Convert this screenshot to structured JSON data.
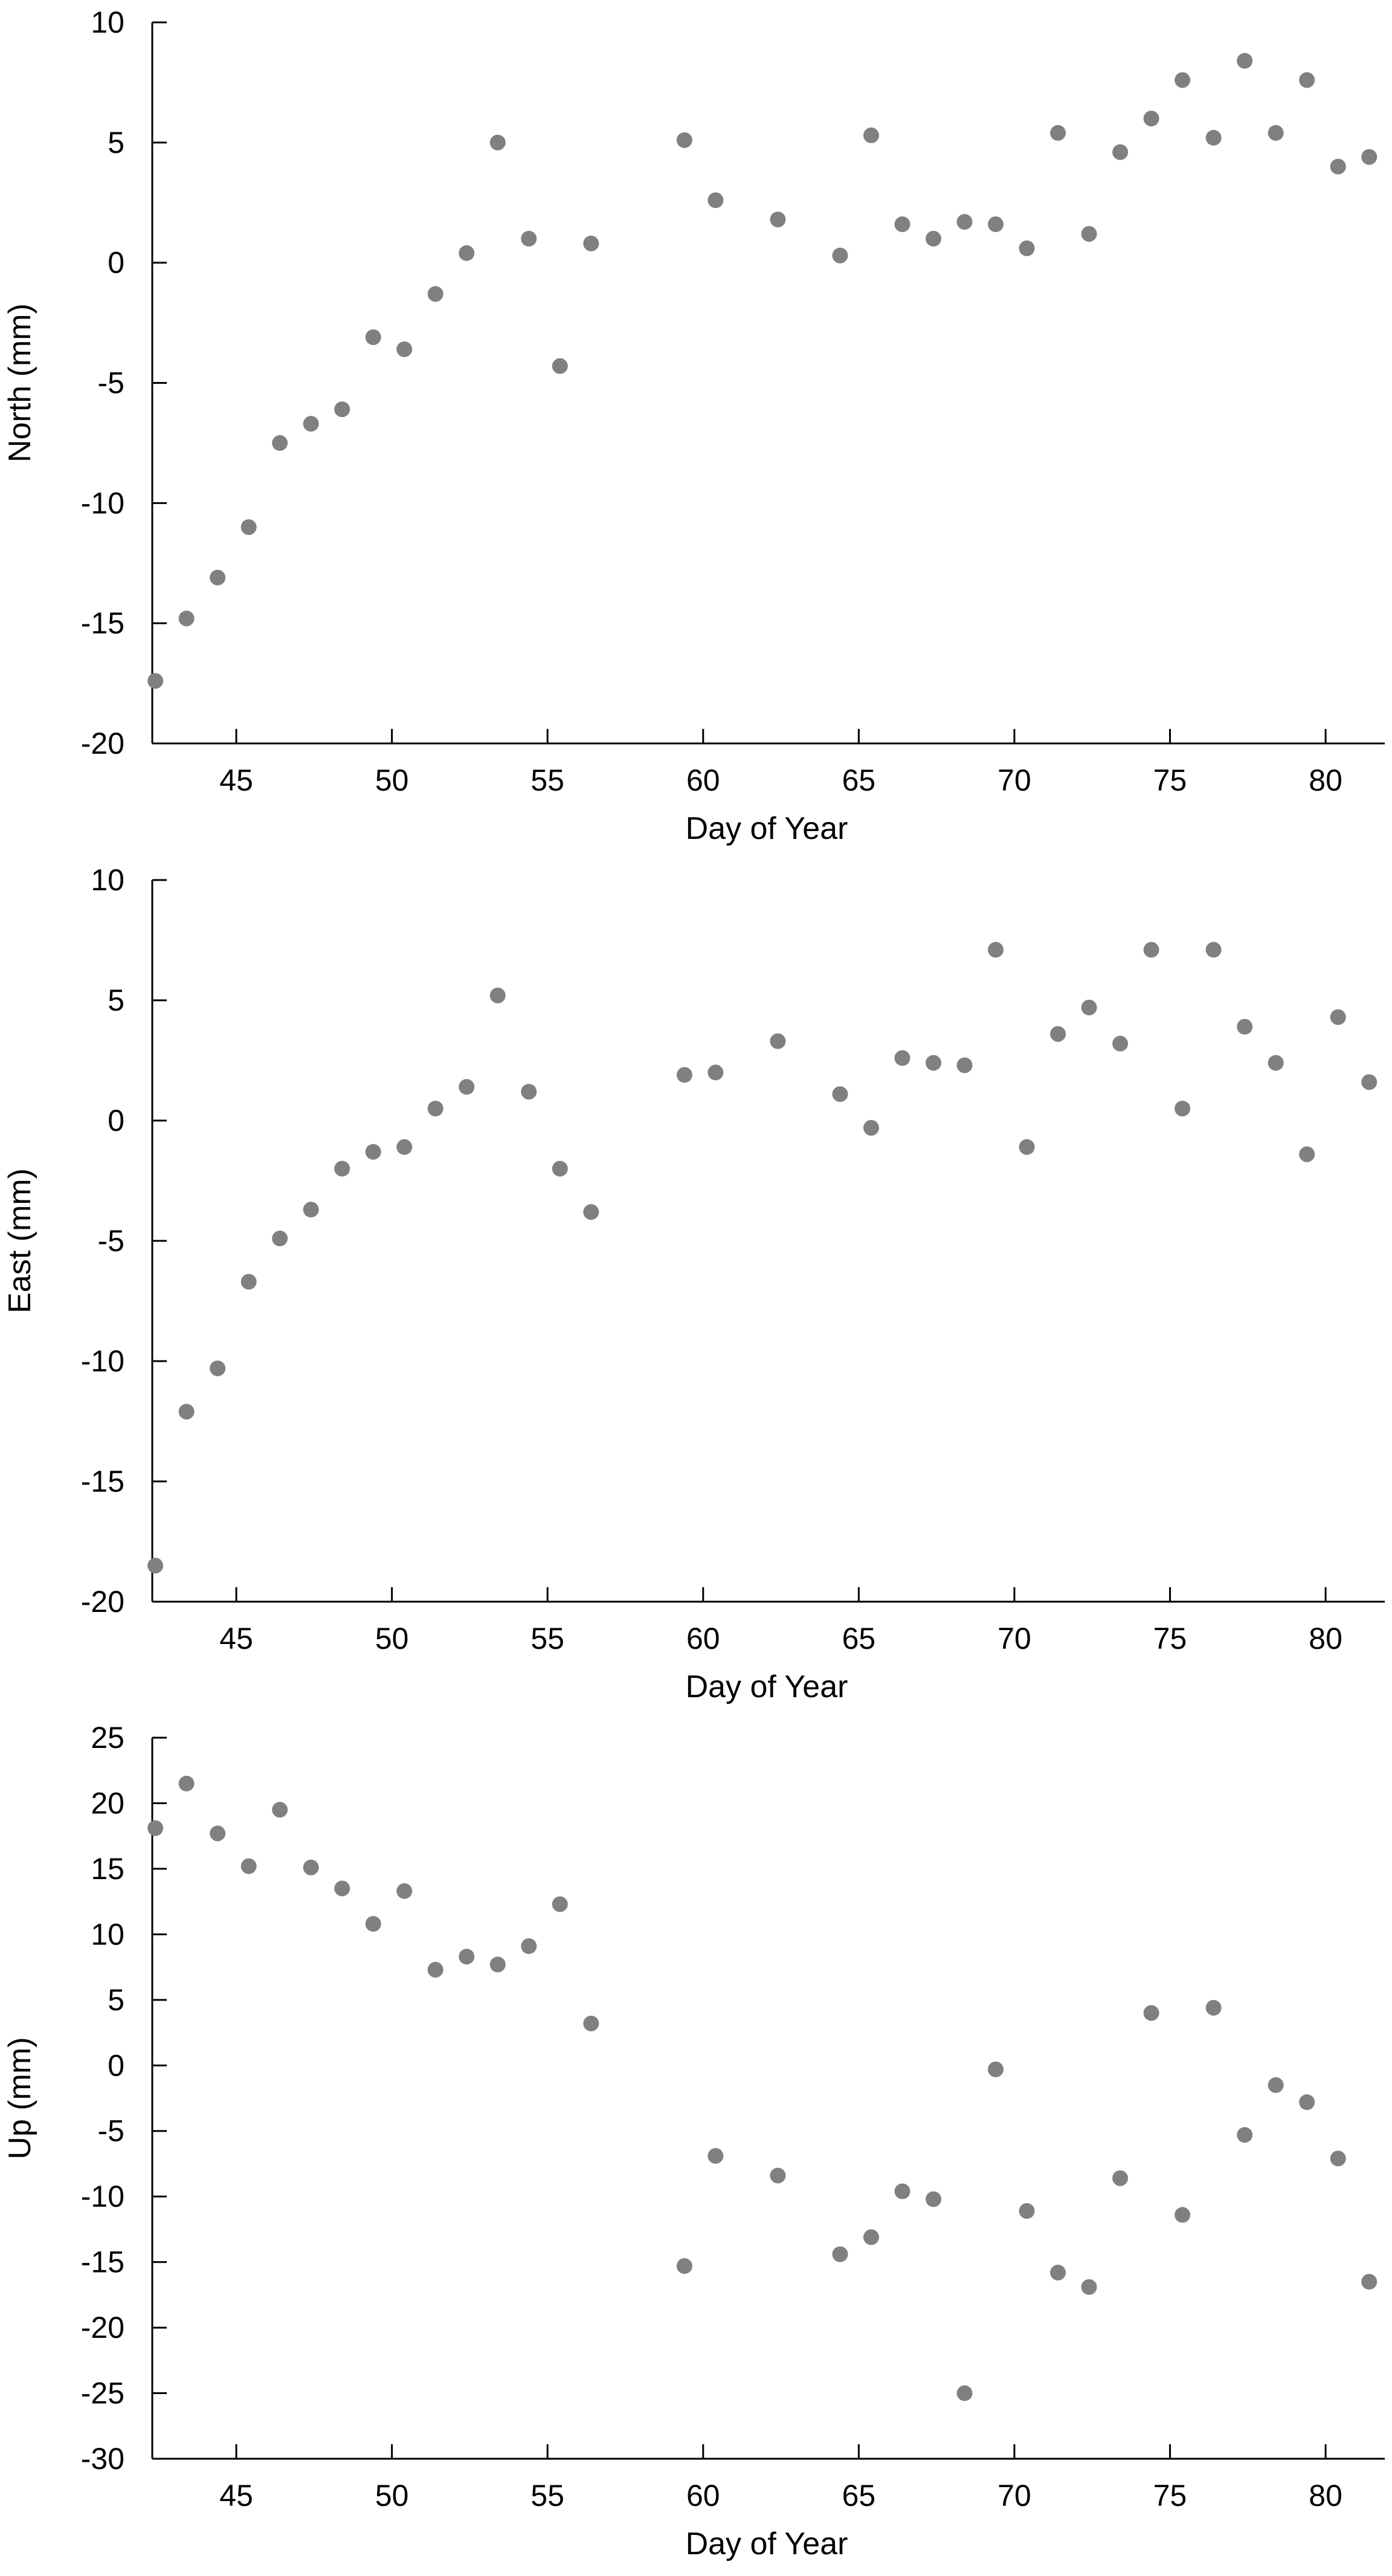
{
  "colors": {
    "marker": "#808080",
    "axis": "#000000",
    "background": "#ffffff"
  },
  "chart_data": [
    {
      "type": "scatter",
      "xlabel": "Day of Year",
      "ylabel": "North (mm)",
      "xlim": [
        42.3,
        81.9
      ],
      "ylim": [
        -20,
        10
      ],
      "xticks": [
        45,
        50,
        55,
        60,
        65,
        70,
        75,
        80
      ],
      "yticks": [
        -20,
        -15,
        -10,
        -5,
        0,
        5,
        10
      ],
      "grid": false,
      "x": [
        42.4,
        43.4,
        44.4,
        45.4,
        46.4,
        47.4,
        48.4,
        49.4,
        50.4,
        51.4,
        52.4,
        53.4,
        54.4,
        55.4,
        56.4,
        59.4,
        60.4,
        62.4,
        64.4,
        65.4,
        66.4,
        67.4,
        68.4,
        69.4,
        70.4,
        71.4,
        72.4,
        73.4,
        74.4,
        75.4,
        76.4,
        77.4,
        78.4,
        79.4,
        80.4,
        81.4
      ],
      "y": [
        -17.4,
        -14.8,
        -13.1,
        -11.0,
        -7.5,
        -6.7,
        -6.1,
        -3.1,
        -3.6,
        -1.3,
        0.4,
        5.0,
        1.0,
        -4.3,
        0.8,
        5.1,
        2.6,
        1.8,
        0.3,
        5.3,
        1.6,
        1.0,
        1.7,
        1.6,
        0.6,
        5.4,
        1.2,
        4.6,
        6.0,
        7.6,
        5.2,
        8.4,
        5.4,
        7.6,
        4.0,
        4.4
      ]
    },
    {
      "type": "scatter",
      "xlabel": "Day of Year",
      "ylabel": "East (mm)",
      "xlim": [
        42.3,
        81.9
      ],
      "ylim": [
        -20,
        10
      ],
      "xticks": [
        45,
        50,
        55,
        60,
        65,
        70,
        75,
        80
      ],
      "yticks": [
        -20,
        -15,
        -10,
        -5,
        0,
        5,
        10
      ],
      "grid": false,
      "x": [
        42.4,
        43.4,
        44.4,
        45.4,
        46.4,
        47.4,
        48.4,
        49.4,
        50.4,
        51.4,
        52.4,
        53.4,
        54.4,
        55.4,
        56.4,
        59.4,
        60.4,
        62.4,
        64.4,
        65.4,
        66.4,
        67.4,
        68.4,
        69.4,
        70.4,
        71.4,
        72.4,
        73.4,
        74.4,
        75.4,
        76.4,
        77.4,
        78.4,
        79.4,
        80.4,
        81.4
      ],
      "y": [
        -18.5,
        -12.1,
        -10.3,
        -6.7,
        -4.9,
        -3.7,
        -2.0,
        -1.3,
        -1.1,
        0.5,
        1.4,
        5.2,
        1.2,
        -2.0,
        -3.8,
        1.9,
        2.0,
        3.3,
        1.1,
        -0.3,
        2.6,
        2.4,
        2.3,
        7.1,
        -1.1,
        3.6,
        4.7,
        3.2,
        7.1,
        0.5,
        7.1,
        3.9,
        2.4,
        -1.4,
        4.3,
        1.6
      ]
    },
    {
      "type": "scatter",
      "xlabel": "Day of Year",
      "ylabel": "Up (mm)",
      "xlim": [
        42.3,
        81.9
      ],
      "ylim": [
        -30,
        25
      ],
      "xticks": [
        45,
        50,
        55,
        60,
        65,
        70,
        75,
        80
      ],
      "yticks": [
        -30,
        -25,
        -20,
        -15,
        -10,
        -5,
        0,
        5,
        10,
        15,
        20,
        25
      ],
      "grid": false,
      "x": [
        42.4,
        43.4,
        44.4,
        45.4,
        46.4,
        47.4,
        48.4,
        49.4,
        50.4,
        51.4,
        52.4,
        53.4,
        54.4,
        55.4,
        56.4,
        59.4,
        60.4,
        62.4,
        64.4,
        65.4,
        66.4,
        67.4,
        68.4,
        69.4,
        70.4,
        71.4,
        72.4,
        73.4,
        74.4,
        75.4,
        76.4,
        77.4,
        78.4,
        79.4,
        80.4,
        81.4
      ],
      "y": [
        18.1,
        21.5,
        17.7,
        15.2,
        19.5,
        15.1,
        13.5,
        10.8,
        13.3,
        7.3,
        8.3,
        7.7,
        9.1,
        12.3,
        3.2,
        -15.3,
        -6.9,
        -8.4,
        -14.4,
        -13.1,
        -9.6,
        -10.2,
        -25.0,
        -0.3,
        -11.1,
        -15.8,
        -16.9,
        -8.6,
        4.0,
        -11.4,
        4.4,
        -5.3,
        -1.5,
        -2.8,
        -7.1,
        -16.5
      ]
    }
  ]
}
